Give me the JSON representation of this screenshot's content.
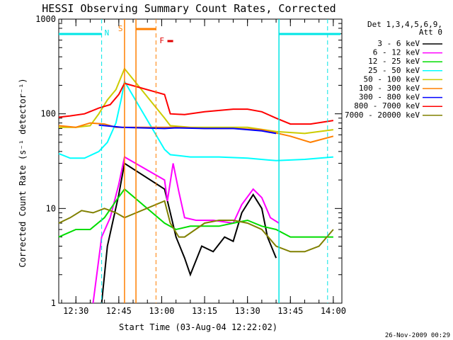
{
  "chart_data": {
    "type": "line",
    "title": "HESSI Observing Summary Count Rates, Corrected",
    "xlabel": "Start Time (03-Aug-04 12:22:02)",
    "ylabel": "Corrected Count Rate (s⁻¹ detector⁻¹)",
    "footer": "26-Nov-2009 00:29",
    "y_scale": "log",
    "ylim": [
      1,
      1000
    ],
    "xlim_minutes": [
      12.4,
      14.05
    ],
    "x_unit": "hours (UT)",
    "xlim": [
      "12:24",
      "14:03"
    ],
    "x_ticks": [
      "12:30",
      "12:45",
      "13:00",
      "13:15",
      "13:30",
      "13:45",
      "14:00"
    ],
    "y_ticks": [
      "1",
      "10",
      "100",
      "1000"
    ],
    "legend": {
      "header": [
        "Det 1,3,4,5,6,9,",
        "Att 0"
      ],
      "placement": "top-right, outside plot"
    },
    "markers": {
      "night_label": "N",
      "saa_label": "S",
      "flare_label": "F",
      "night_color": "#00e5e5",
      "saa_color": "#ff7f00",
      "flare_color": "#e00000"
    },
    "series": [
      {
        "name": "3 - 6 keV",
        "color": "#000000",
        "points": [
          [
            "12:39",
            0
          ],
          [
            "12:41",
            4
          ],
          [
            "12:45",
            14
          ],
          [
            "12:47",
            30
          ],
          [
            "13:01",
            16
          ],
          [
            "13:03",
            9
          ],
          [
            "13:05",
            5
          ],
          [
            "13:08",
            3
          ],
          [
            "13:10",
            2
          ],
          [
            "13:14",
            4
          ],
          [
            "13:18",
            3.5
          ],
          [
            "13:22",
            5
          ],
          [
            "13:25",
            4.5
          ],
          [
            "13:28",
            9
          ],
          [
            "13:32",
            14
          ],
          [
            "13:35",
            10
          ],
          [
            "13:37",
            5
          ],
          [
            "13:40",
            3
          ]
        ]
      },
      {
        "name": "6 - 12 keV",
        "color": "#ff00ff",
        "points": [
          [
            "12:36",
            0
          ],
          [
            "12:39",
            5
          ],
          [
            "12:42",
            8
          ],
          [
            "12:45",
            18
          ],
          [
            "12:47",
            35
          ],
          [
            "13:01",
            20
          ],
          [
            "13:02",
            12
          ],
          [
            "13:04",
            30
          ],
          [
            "13:06",
            15
          ],
          [
            "13:08",
            8
          ],
          [
            "13:12",
            7.5
          ],
          [
            "13:18",
            7.5
          ],
          [
            "13:25",
            7
          ],
          [
            "13:28",
            11
          ],
          [
            "13:32",
            16
          ],
          [
            "13:35",
            13
          ],
          [
            "13:38",
            8
          ],
          [
            "13:41",
            7
          ]
        ]
      },
      {
        "name": "12 - 25 keV",
        "color": "#00dd00",
        "points": [
          [
            "12:24",
            5
          ],
          [
            "12:30",
            6
          ],
          [
            "12:35",
            6
          ],
          [
            "12:40",
            8
          ],
          [
            "12:44",
            12
          ],
          [
            "12:47",
            16
          ],
          [
            "13:01",
            7
          ],
          [
            "13:05",
            6
          ],
          [
            "13:10",
            6.5
          ],
          [
            "13:15",
            6.5
          ],
          [
            "13:20",
            6.5
          ],
          [
            "13:25",
            7
          ],
          [
            "13:30",
            7.5
          ],
          [
            "13:35",
            6.5
          ],
          [
            "13:40",
            6
          ],
          [
            "13:45",
            5
          ],
          [
            "13:50",
            5
          ],
          [
            "14:00",
            5
          ]
        ]
      },
      {
        "name": "25 - 50 keV",
        "color": "#00ffff",
        "points": [
          [
            "12:24",
            38
          ],
          [
            "12:28",
            34
          ],
          [
            "12:33",
            34
          ],
          [
            "12:38",
            40
          ],
          [
            "12:41",
            50
          ],
          [
            "12:44",
            80
          ],
          [
            "12:46",
            150
          ],
          [
            "12:47",
            220
          ],
          [
            "13:01",
            42
          ],
          [
            "13:03",
            37
          ],
          [
            "13:10",
            35
          ],
          [
            "13:20",
            35
          ],
          [
            "13:30",
            34
          ],
          [
            "13:40",
            32
          ],
          [
            "13:50",
            33
          ],
          [
            "14:00",
            35
          ]
        ]
      },
      {
        "name": "50 - 100 keV",
        "color": "#cccc00",
        "points": [
          [
            "12:24",
            72
          ],
          [
            "12:30",
            72
          ],
          [
            "12:35",
            75
          ],
          [
            "12:38",
            100
          ],
          [
            "12:41",
            140
          ],
          [
            "12:44",
            180
          ],
          [
            "12:47",
            300
          ],
          [
            "13:01",
            90
          ],
          [
            "13:03",
            75
          ],
          [
            "13:10",
            72
          ],
          [
            "13:20",
            72
          ],
          [
            "13:30",
            72
          ],
          [
            "13:40",
            65
          ],
          [
            "13:50",
            62
          ],
          [
            "14:00",
            68
          ]
        ]
      },
      {
        "name": "100 - 300 keV",
        "color": "#ff7f00",
        "points": [
          [
            "12:24",
            75
          ],
          [
            "12:30",
            72
          ],
          [
            "12:35",
            80
          ],
          [
            "12:40",
            78
          ],
          [
            "12:44",
            72
          ],
          [
            "12:47",
            72
          ],
          [
            "13:01",
            72
          ],
          [
            "13:05",
            72
          ],
          [
            "13:15",
            70
          ],
          [
            "13:25",
            70
          ],
          [
            "13:35",
            68
          ],
          [
            "13:45",
            58
          ],
          [
            "13:52",
            50
          ],
          [
            "14:00",
            58
          ]
        ]
      },
      {
        "name": "300 - 800 keV",
        "color": "#0000ff",
        "points": [
          [
            "12:38",
            76
          ],
          [
            "12:42",
            74
          ],
          [
            "12:46",
            72
          ],
          [
            "13:01",
            70
          ],
          [
            "13:05",
            71
          ],
          [
            "13:15",
            70
          ],
          [
            "13:25",
            70
          ],
          [
            "13:35",
            66
          ],
          [
            "13:40",
            62
          ]
        ]
      },
      {
        "name": "800 - 7000 keV",
        "color": "#ff0000",
        "points": [
          [
            "12:24",
            92
          ],
          [
            "12:28",
            95
          ],
          [
            "12:33",
            100
          ],
          [
            "12:38",
            115
          ],
          [
            "12:42",
            125
          ],
          [
            "12:45",
            160
          ],
          [
            "12:47",
            210
          ],
          [
            "13:01",
            160
          ],
          [
            "13:03",
            100
          ],
          [
            "13:08",
            98
          ],
          [
            "13:15",
            105
          ],
          [
            "13:25",
            112
          ],
          [
            "13:30",
            112
          ],
          [
            "13:35",
            105
          ],
          [
            "13:40",
            90
          ],
          [
            "13:45",
            78
          ],
          [
            "13:52",
            78
          ],
          [
            "14:00",
            85
          ]
        ]
      },
      {
        "name": "7000 - 20000 keV",
        "color": "#808000",
        "points": [
          [
            "12:24",
            7
          ],
          [
            "12:28",
            8
          ],
          [
            "12:32",
            9.5
          ],
          [
            "12:36",
            9
          ],
          [
            "12:40",
            10
          ],
          [
            "12:44",
            9
          ],
          [
            "12:47",
            8
          ],
          [
            "13:01",
            12
          ],
          [
            "13:03",
            7
          ],
          [
            "13:06",
            5
          ],
          [
            "13:08",
            5
          ],
          [
            "13:15",
            7
          ],
          [
            "13:20",
            7.5
          ],
          [
            "13:25",
            7.5
          ],
          [
            "13:30",
            7
          ],
          [
            "13:35",
            6
          ],
          [
            "13:40",
            4
          ],
          [
            "13:45",
            3.5
          ],
          [
            "13:50",
            3.5
          ],
          [
            "13:55",
            4
          ],
          [
            "14:00",
            6
          ]
        ]
      }
    ]
  }
}
